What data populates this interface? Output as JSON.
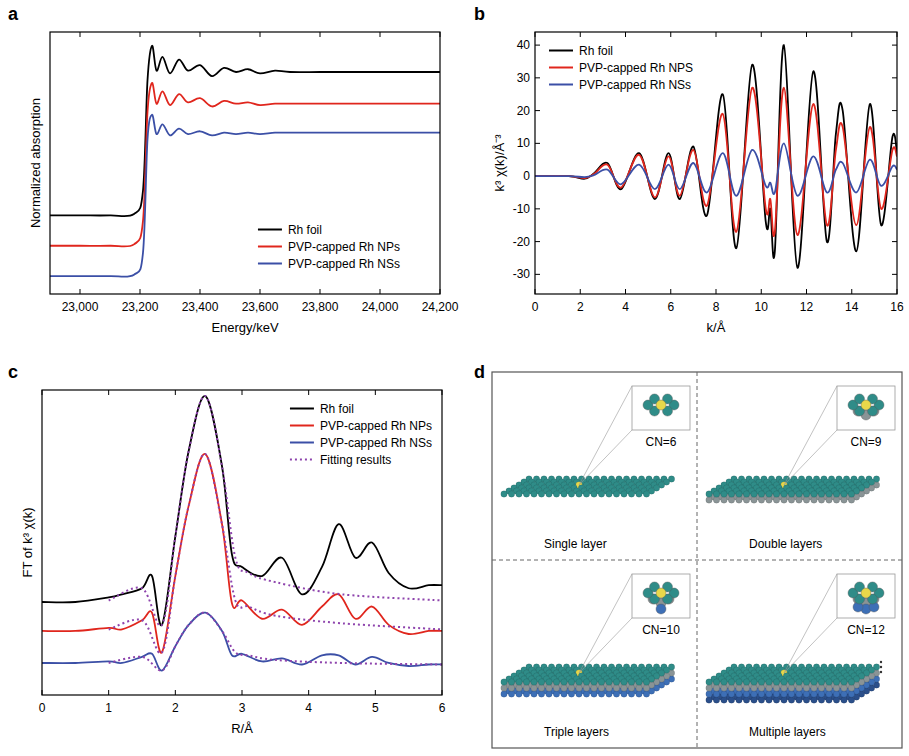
{
  "chart_data": [
    {
      "panel_label": "a",
      "type": "line",
      "x_label": "Energy/keV",
      "y_label": "Normalized absorption",
      "x": [
        22900,
        23000,
        23100,
        23180,
        23210,
        23225,
        23240,
        23255,
        23275,
        23300,
        23330,
        23360,
        23400,
        23440,
        23480,
        23520,
        23560,
        23600,
        23650,
        23700,
        23800,
        23900,
        24000,
        24100,
        24200
      ],
      "xlim": [
        22900,
        24200
      ],
      "ylim": [
        0,
        1.9
      ],
      "xticks": [
        {
          "value": 23000,
          "label": "23,000"
        },
        {
          "value": 23200,
          "label": "23,200"
        },
        {
          "value": 23400,
          "label": "23,400"
        },
        {
          "value": 23600,
          "label": "23,600"
        },
        {
          "value": 23800,
          "label": "23,800"
        },
        {
          "value": 24000,
          "label": "24,000"
        },
        {
          "value": 24200,
          "label": "24,200"
        }
      ],
      "tick_labels": "x",
      "legend": "lower right",
      "series": [
        {
          "name": "Rh foil",
          "color": "#000000",
          "values": [
            0.57,
            0.57,
            0.57,
            0.58,
            0.75,
            1.55,
            1.8,
            1.62,
            1.72,
            1.6,
            1.7,
            1.62,
            1.66,
            1.58,
            1.64,
            1.61,
            1.63,
            1.6,
            1.62,
            1.61,
            1.61,
            1.61,
            1.61,
            1.61,
            1.61
          ]
        },
        {
          "name": "PVP-capped Rh NPs",
          "color": "#e0261d",
          "values": [
            0.35,
            0.35,
            0.35,
            0.36,
            0.53,
            1.32,
            1.53,
            1.38,
            1.47,
            1.37,
            1.45,
            1.39,
            1.42,
            1.36,
            1.4,
            1.38,
            1.39,
            1.37,
            1.38,
            1.38,
            1.38,
            1.38,
            1.38,
            1.38,
            1.38
          ]
        },
        {
          "name": "PVP-capped Rh NSs",
          "color": "#3b4fa6",
          "values": [
            0.13,
            0.13,
            0.13,
            0.14,
            0.3,
            1.12,
            1.3,
            1.16,
            1.23,
            1.15,
            1.2,
            1.16,
            1.18,
            1.15,
            1.17,
            1.16,
            1.17,
            1.16,
            1.17,
            1.17,
            1.17,
            1.17,
            1.17,
            1.17,
            1.17
          ]
        }
      ]
    },
    {
      "panel_label": "b",
      "type": "line",
      "x_label": "k/Å",
      "y_label": "k³ χ(k)/Å⁻³",
      "x": [
        0,
        1.5,
        2.2,
        2.6,
        3.2,
        3.8,
        4.6,
        5.3,
        5.9,
        6.4,
        7.0,
        7.6,
        8.3,
        8.9,
        9.6,
        10.2,
        10.4,
        10.6,
        11.0,
        11.6,
        12.3,
        12.9,
        13.3,
        13.6,
        14.2,
        14.8,
        15.3,
        15.8,
        16
      ],
      "xlim": [
        0,
        16
      ],
      "ylim": [
        -36,
        44
      ],
      "xticks": [
        0,
        2,
        4,
        6,
        8,
        10,
        12,
        14,
        16
      ],
      "yticks": [
        -30,
        -20,
        -10,
        0,
        10,
        20,
        30,
        40
      ],
      "legend": "upper left",
      "series": [
        {
          "name": "Rh foil",
          "color": "#000000",
          "values": [
            0,
            0,
            -0.8,
            0.8,
            4,
            -4,
            7,
            -7,
            7,
            -7,
            9,
            -12,
            25,
            -22,
            34,
            -14,
            -10,
            -23,
            40,
            -28,
            32,
            -20,
            13,
            20,
            -23,
            22,
            -15,
            12,
            7
          ]
        },
        {
          "name": "PVP-capped Rh NPS",
          "color": "#e0261d",
          "values": [
            0,
            0,
            -0.6,
            0.6,
            3.5,
            -3.5,
            6.5,
            -6.5,
            6,
            -6,
            8,
            -9,
            19,
            -17,
            27,
            -10,
            -7,
            -17,
            27,
            -18,
            22,
            -15,
            8,
            15,
            -15,
            15,
            -10,
            8,
            6
          ]
        },
        {
          "name": "PVP-capped Rh NSs",
          "color": "#3b4fa6",
          "values": [
            0,
            0,
            -0.3,
            0.3,
            2,
            -2.5,
            3.5,
            -4,
            3.5,
            -4,
            4,
            -5,
            7,
            -6,
            8,
            -3,
            -2,
            -5,
            10,
            -6,
            6,
            -5,
            2,
            4,
            -5,
            5,
            -3,
            3,
            2
          ]
        }
      ]
    },
    {
      "panel_label": "c",
      "type": "line",
      "x_label": "R/Å",
      "y_label": "FT of k³ χ(k)",
      "x": [
        0,
        0.5,
        1.0,
        1.2,
        1.5,
        1.65,
        1.8,
        2.0,
        2.2,
        2.45,
        2.7,
        2.85,
        3.0,
        3.3,
        3.6,
        3.9,
        4.2,
        4.45,
        4.7,
        4.95,
        5.2,
        5.5,
        5.8,
        6.0
      ],
      "xlim": [
        0,
        6
      ],
      "ylim": [
        0,
        10
      ],
      "xticks": [
        0,
        1,
        2,
        3,
        4,
        5,
        6
      ],
      "tick_labels": "x",
      "legend": "upper right",
      "series": [
        {
          "name": "Rh foil",
          "color": "#000000",
          "values": [
            3.05,
            3.05,
            3.2,
            3.3,
            3.5,
            3.9,
            2.3,
            5.2,
            8.0,
            9.8,
            7.5,
            4.6,
            4.2,
            3.9,
            4.5,
            3.3,
            4.2,
            5.6,
            4.5,
            5.0,
            4.0,
            3.5,
            3.6,
            3.6
          ]
        },
        {
          "name": "PVP-capped Rh NPs",
          "color": "#e0261d",
          "values": [
            2.1,
            2.1,
            2.2,
            2.15,
            2.45,
            2.7,
            1.4,
            3.9,
            6.2,
            7.9,
            5.6,
            3.0,
            3.1,
            2.5,
            2.8,
            2.3,
            2.9,
            3.3,
            2.5,
            2.9,
            2.3,
            2.0,
            2.1,
            2.1
          ]
        },
        {
          "name": "PVP-capped Rh NSs",
          "color": "#3b4fa6",
          "values": [
            1.05,
            1.05,
            1.1,
            1.05,
            1.25,
            1.35,
            0.8,
            1.6,
            2.3,
            2.7,
            2.1,
            1.3,
            1.35,
            1.1,
            1.2,
            1.0,
            1.3,
            1.3,
            1.0,
            1.25,
            1.05,
            0.95,
            1.0,
            1.0
          ]
        },
        {
          "name": "Fitting results",
          "color": "#8e44ad",
          "line_style": "dotted",
          "x": [
            1.0,
            1.5,
            1.8,
            2.0,
            2.2,
            2.45,
            2.7,
            2.9,
            3.1,
            3.5,
            4.5,
            6.0,
            null,
            1.0,
            1.5,
            1.8,
            2.0,
            2.2,
            2.45,
            2.7,
            2.9,
            3.1,
            3.5,
            4.5,
            6.0,
            null,
            1.0,
            1.5,
            1.8,
            2.0,
            2.2,
            2.45,
            2.7,
            2.9,
            3.1,
            3.5,
            4.5,
            6.0
          ],
          "values": [
            3.1,
            3.5,
            2.3,
            5.2,
            8.0,
            9.8,
            7.5,
            4.5,
            4.0,
            3.7,
            3.3,
            3.1,
            null,
            2.15,
            2.45,
            1.4,
            3.9,
            6.2,
            7.9,
            5.6,
            3.1,
            2.9,
            2.6,
            2.35,
            2.15,
            null,
            1.05,
            1.25,
            0.8,
            1.6,
            2.3,
            2.7,
            2.1,
            1.4,
            1.3,
            1.15,
            1.05,
            1.0
          ]
        }
      ]
    }
  ],
  "diagram": {
    "panel_label": "d",
    "items": [
      {
        "label": "Single layer",
        "cn": "CN=6"
      },
      {
        "label": "Double layers",
        "cn": "CN=9"
      },
      {
        "label": "Triple layers",
        "cn": "CN=10"
      },
      {
        "label": "Multiple layers",
        "cn": "CN=12"
      }
    ]
  }
}
